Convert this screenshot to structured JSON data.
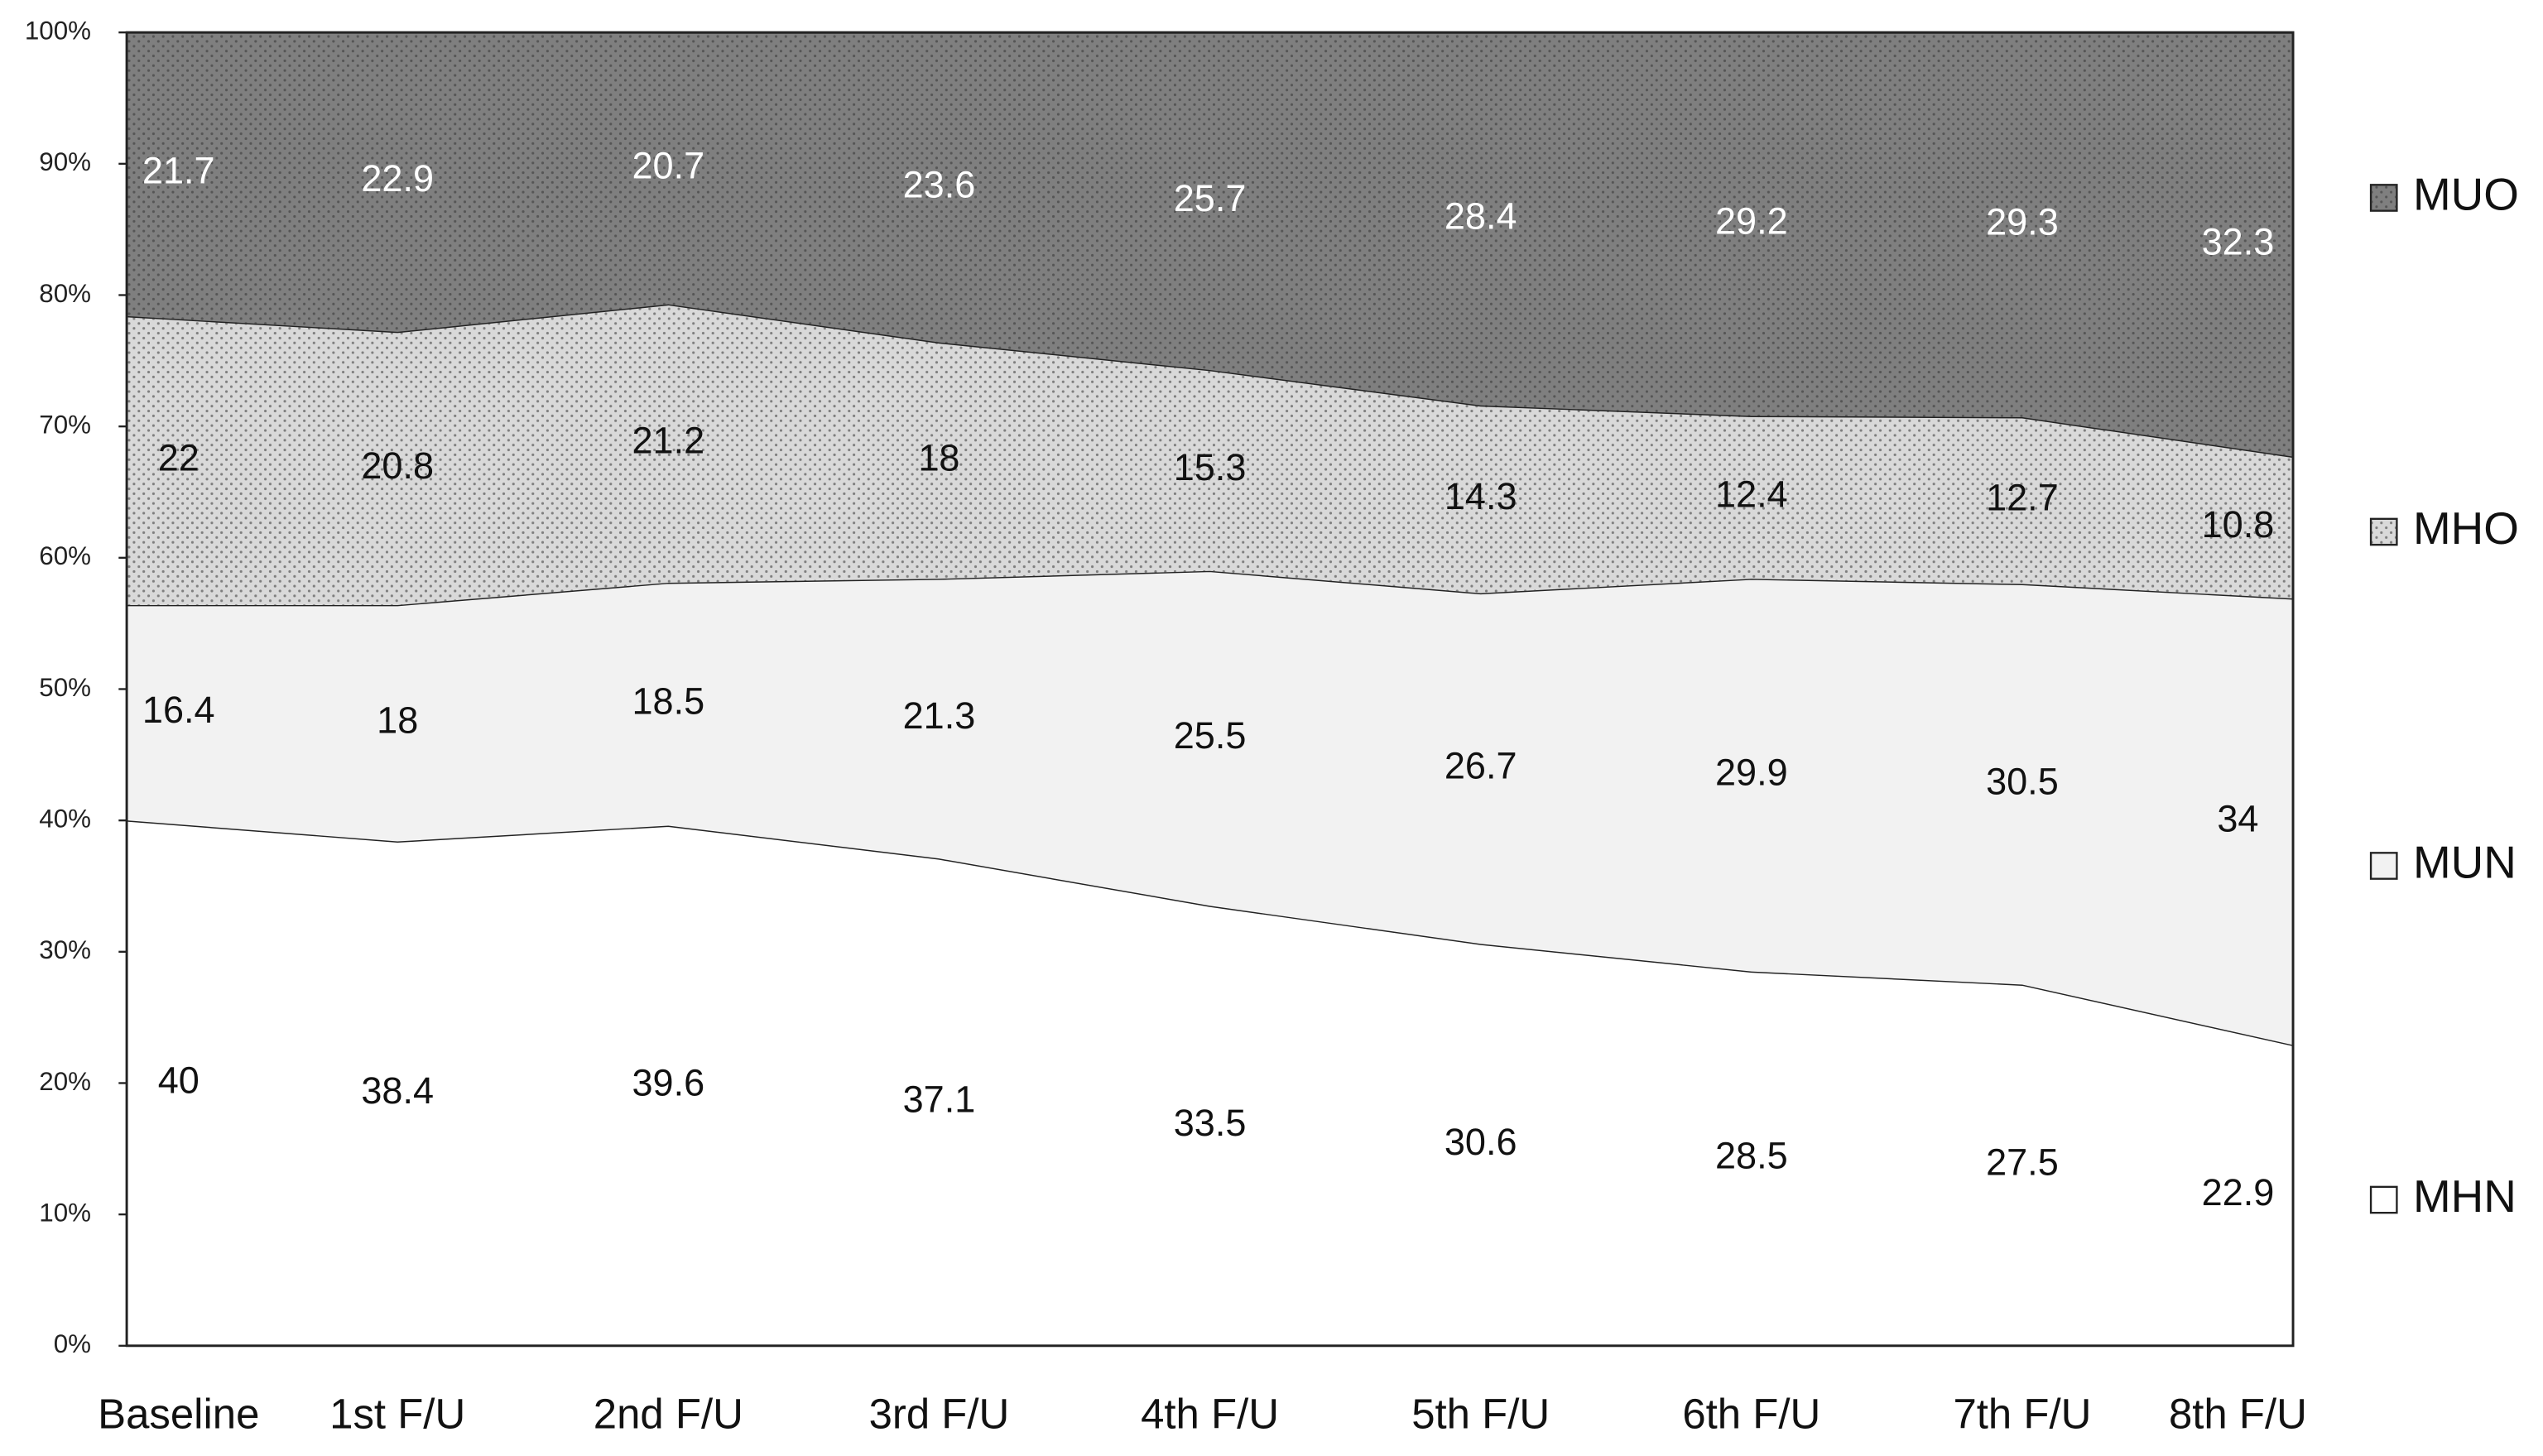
{
  "chart_data": {
    "type": "stacked-area",
    "categories": [
      "Baseline",
      "1st F/U",
      "2nd F/U",
      "3rd F/U",
      "4th F/U",
      "5th F/U",
      "6th F/U",
      "7th F/U",
      "8th F/U"
    ],
    "series": [
      {
        "name": "MHN",
        "color": "#ffffff",
        "pattern": false,
        "label_color": "#111111",
        "values": [
          40.0,
          38.4,
          39.6,
          37.1,
          33.5,
          30.6,
          28.5,
          27.5,
          22.9
        ]
      },
      {
        "name": "MUN",
        "color": "#f2f2f2",
        "pattern": false,
        "label_color": "#111111",
        "values": [
          16.4,
          18.0,
          18.5,
          21.3,
          25.5,
          26.7,
          29.9,
          30.5,
          34.0
        ]
      },
      {
        "name": "MHO",
        "color": "#d9d9d9",
        "pattern": true,
        "label_color": "#111111",
        "values": [
          22.0,
          20.8,
          21.2,
          18.0,
          15.3,
          14.3,
          12.4,
          12.7,
          10.8
        ]
      },
      {
        "name": "MUO",
        "color": "#7f7f7f",
        "pattern": true,
        "label_color": "#ffffff",
        "values": [
          21.7,
          22.9,
          20.7,
          23.6,
          25.7,
          28.4,
          29.2,
          29.3,
          32.3
        ]
      }
    ],
    "ylim": [
      0,
      100
    ],
    "yticks": [
      {
        "value": 0,
        "label": "0%"
      },
      {
        "value": 10,
        "label": "10%"
      },
      {
        "value": 20,
        "label": "20%"
      },
      {
        "value": 30,
        "label": "30%"
      },
      {
        "value": 40,
        "label": "40%"
      },
      {
        "value": 50,
        "label": "50%"
      },
      {
        "value": 60,
        "label": "60%"
      },
      {
        "value": 70,
        "label": "70%"
      },
      {
        "value": 80,
        "label": "80%"
      },
      {
        "value": 90,
        "label": "90%"
      },
      {
        "value": 100,
        "label": "100%"
      }
    ],
    "legend": "right"
  }
}
